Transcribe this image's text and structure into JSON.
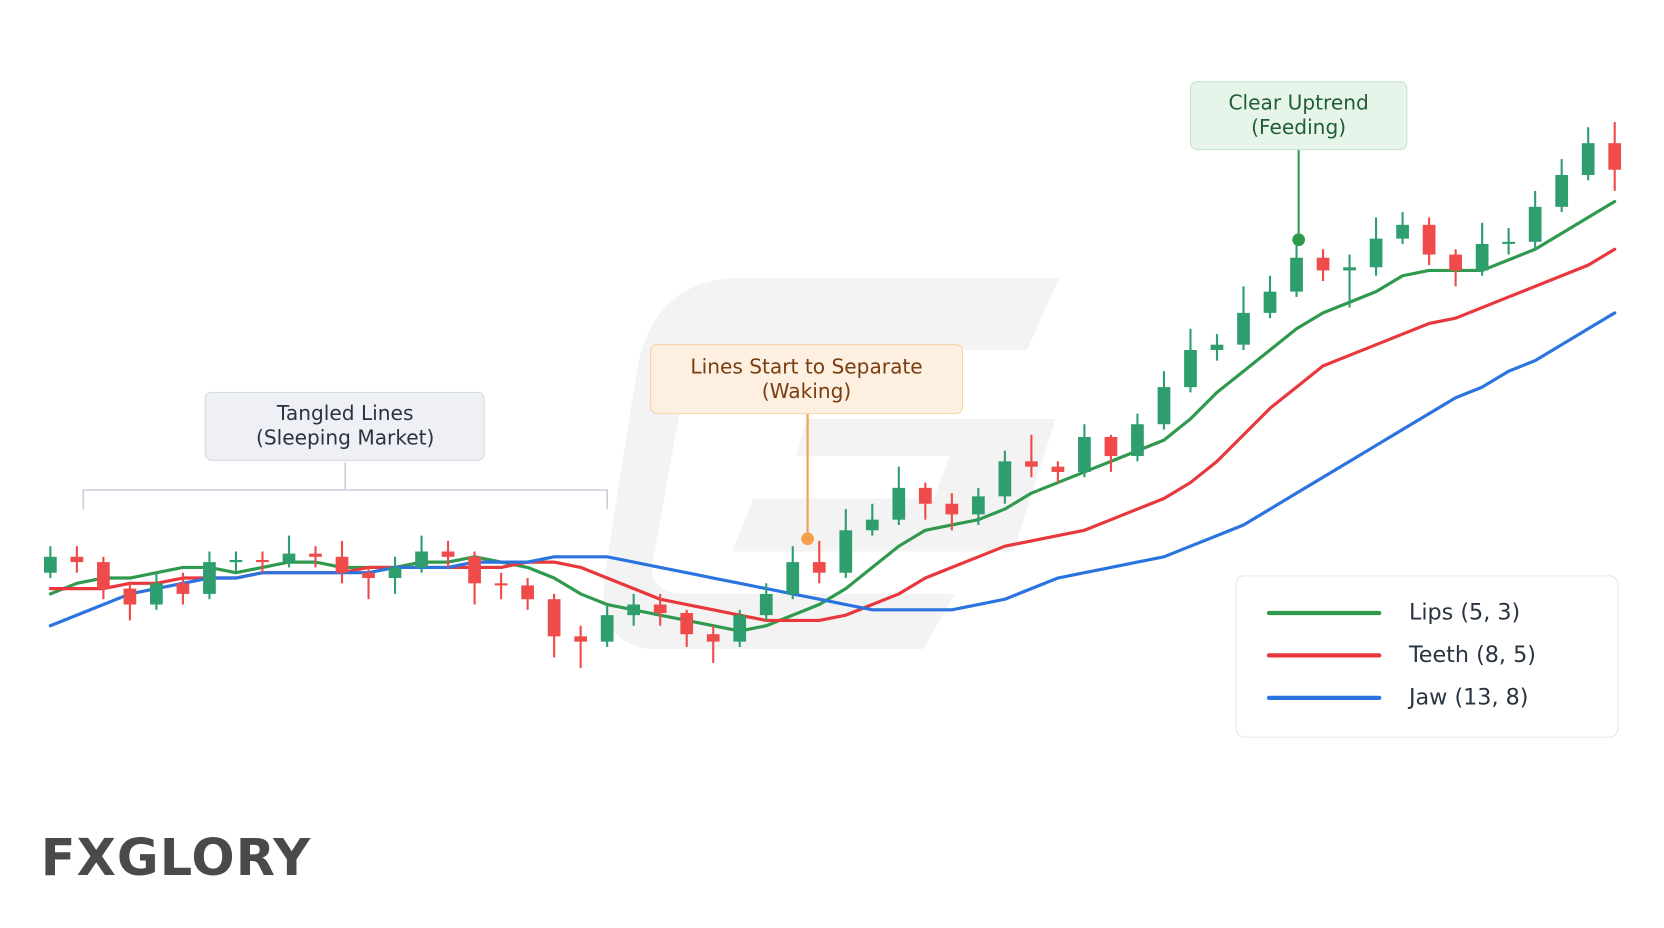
{
  "chart_data": {
    "type": "candlestick",
    "ylim": [
      0,
      120
    ],
    "up_color": "#2e9e6e",
    "down_color": "#ef4b4b",
    "open": [
      32,
      35,
      34,
      29,
      26,
      30,
      28,
      34,
      34.4,
      34,
      35.6,
      35,
      32,
      31,
      33,
      36,
      35,
      30,
      29.6,
      27,
      20,
      19,
      24,
      26,
      24.4,
      20.4,
      19,
      24,
      28,
      34,
      32,
      40,
      42,
      48,
      45,
      43,
      46.4,
      53,
      52,
      51,
      57.6,
      54,
      60,
      67,
      74,
      75,
      81,
      85,
      91.4,
      89,
      89.6,
      95,
      97.6,
      92,
      89,
      94,
      94.4,
      101,
      107,
      113
    ],
    "high": [
      37,
      37,
      35,
      30,
      32,
      32,
      36,
      36,
      36,
      39,
      37,
      38,
      33,
      35,
      39,
      38,
      36,
      32,
      31,
      28,
      22,
      26,
      28,
      28,
      25,
      22,
      25,
      30,
      37,
      38,
      44,
      45,
      52,
      49,
      47,
      48,
      55,
      58,
      53,
      60,
      58,
      62,
      70,
      78,
      77,
      86,
      88,
      95,
      93,
      92,
      99,
      100,
      99,
      93,
      98,
      97,
      104,
      110,
      116,
      117
    ],
    "low": [
      31,
      32,
      27,
      23,
      25,
      26,
      27,
      32,
      32,
      33,
      33,
      30,
      27,
      28,
      32,
      33,
      26,
      27,
      25,
      16,
      14,
      18,
      22,
      22,
      18,
      15,
      18,
      23,
      27,
      30,
      31,
      39,
      41,
      42,
      40,
      41,
      45,
      50,
      49,
      50,
      51,
      53,
      59,
      66,
      72,
      74,
      80,
      84,
      87,
      82,
      88,
      94,
      90,
      86,
      88,
      92,
      93,
      100,
      106,
      104
    ],
    "close": [
      35,
      34,
      29,
      26,
      30,
      28,
      34,
      34.4,
      34,
      35.6,
      35,
      32,
      31,
      33,
      36,
      35,
      30,
      29.6,
      27,
      20,
      19,
      24,
      26,
      24.4,
      20.4,
      19,
      24,
      28,
      34,
      32,
      40,
      42,
      48,
      45,
      43,
      46.4,
      53,
      52,
      51,
      57.6,
      54,
      60,
      67,
      74,
      75,
      81,
      85,
      91.4,
      89,
      89.6,
      95,
      97.6,
      92,
      89,
      94,
      94.4,
      101,
      107,
      113,
      108
    ],
    "series": [
      {
        "name": "Lips (5, 3)",
        "color": "#2f9a4e",
        "values": [
          28,
          30,
          31,
          31,
          32,
          33,
          33,
          32,
          33,
          34,
          34,
          33,
          33,
          33,
          34,
          34,
          35,
          34,
          33,
          31,
          28,
          26,
          25,
          24,
          23,
          22,
          21,
          22,
          24,
          26,
          29,
          33,
          37,
          40,
          41,
          42,
          44,
          47,
          49,
          51,
          53,
          55,
          57,
          61,
          66,
          70,
          74,
          78,
          81,
          83,
          85,
          88,
          89,
          89,
          89,
          91,
          93,
          96,
          99,
          102
        ]
      },
      {
        "name": "Teeth (8, 5)",
        "color": "#e8383d",
        "values": [
          29,
          29,
          29,
          30,
          30,
          31,
          31,
          31,
          32,
          32,
          32,
          32,
          33,
          33,
          33,
          33,
          33,
          33,
          34,
          34,
          33,
          31,
          29,
          27,
          26,
          25,
          24,
          23,
          23,
          23,
          24,
          26,
          28,
          31,
          33,
          35,
          37,
          38,
          39,
          40,
          42,
          44,
          46,
          49,
          53,
          58,
          63,
          67,
          71,
          73,
          75,
          77,
          79,
          80,
          82,
          84,
          86,
          88,
          90,
          93
        ]
      },
      {
        "name": "Jaw (13, 8)",
        "color": "#2b74e0",
        "values": [
          22,
          24,
          26,
          28,
          29,
          30,
          31,
          31,
          32,
          32,
          32,
          32,
          32,
          33,
          33,
          33,
          34,
          34,
          34,
          35,
          35,
          35,
          34,
          33,
          32,
          31,
          30,
          29,
          28,
          27,
          26,
          25,
          25,
          25,
          25,
          26,
          27,
          29,
          31,
          32,
          33,
          34,
          35,
          37,
          39,
          41,
          44,
          47,
          50,
          53,
          56,
          59,
          62,
          65,
          67,
          70,
          72,
          75,
          78,
          81
        ]
      }
    ],
    "annotations": [
      {
        "lines": [
          "Tangled Lines",
          "(Sleeping Market)"
        ]
      },
      {
        "lines": [
          "Lines Start to Separate",
          "(Waking)"
        ]
      },
      {
        "lines": [
          "Clear Uptrend",
          "(Feeding)"
        ]
      }
    ],
    "logo": "FXGLORY"
  }
}
